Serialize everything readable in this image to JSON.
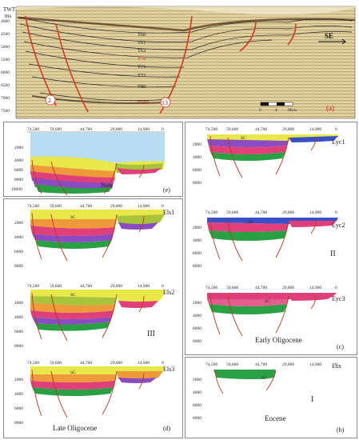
{
  "panel_a": {
    "axis_title": "TWT",
    "axis_unit": "ms",
    "ticks": [
      "4000",
      "4500",
      "5000",
      "5500",
      "6000",
      "6500",
      "7000",
      "7500"
    ],
    "horizons": [
      "T60",
      "T61",
      "T62",
      "T70",
      "T71",
      "T72",
      "T80",
      "T100"
    ],
    "fault_labels": [
      "2",
      "13"
    ],
    "direction": "SE",
    "scale_ticks": [
      "0",
      "4",
      "8Km"
    ],
    "label": "(a)"
  },
  "x_ticks": [
    "74,500",
    "59,600",
    "44,700",
    "29,800",
    "14,900",
    "0"
  ],
  "depth_ticks_now": [
    "2000",
    "4000",
    "6000",
    "8000",
    "10000"
  ],
  "depth_ticks": [
    "2000",
    "4000",
    "6000",
    "8000"
  ],
  "unit_sc": "SC",
  "panel_e": {
    "title": "Now",
    "label": "(e)"
  },
  "panel_d": {
    "stage1": "Els1",
    "stage2": "Els2",
    "stage3": "Els3",
    "roman": "III",
    "period": "Late Oligocene",
    "label": "(d)"
  },
  "panel_c": {
    "stage1": "Eyc1",
    "stage2": "Eyc2",
    "stage3": "Eyc3",
    "roman": "II",
    "period": "Early Oligocene",
    "label": "(c)"
  },
  "panel_b": {
    "stage": "Esx",
    "roman": "I",
    "period": "Eocene",
    "label": "(b)"
  },
  "colors": {
    "water": "#b8dcf2",
    "yellow": "#e8e84a",
    "olive": "#a8c43a",
    "orange": "#ee9a3a",
    "pink": "#e0407a",
    "purple": "#8a4cc0",
    "blue": "#3a50c8",
    "green": "#2aa044",
    "fault": "#b83a20"
  }
}
